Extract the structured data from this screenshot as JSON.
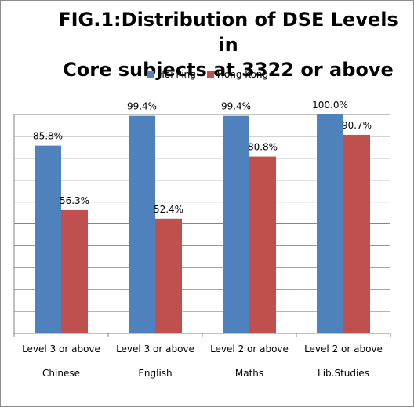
{
  "chart_data": {
    "type": "bar",
    "title": [
      "FIG.1:Distribution of DSE Levels in",
      "Core subjects at 3322 or above"
    ],
    "categories": [
      {
        "level": "Level 3 or above",
        "subject": "Chinese"
      },
      {
        "level": "Level 3 or above",
        "subject": "English"
      },
      {
        "level": "Level 2 or above",
        "subject": "Maths"
      },
      {
        "level": "Level 2 or above",
        "subject": "Lib.Studies"
      }
    ],
    "series": [
      {
        "name": "Hoi Ping",
        "color": "#4f81bd",
        "values": [
          85.8,
          99.4,
          99.4,
          100.0
        ],
        "labels": [
          "85.8%",
          "99.4%",
          "99.4%",
          "100.0%"
        ]
      },
      {
        "name": "Hong Kong",
        "color": "#c0504d",
        "values": [
          56.3,
          52.4,
          80.8,
          90.7
        ],
        "labels": [
          "56.3%",
          "52.4%",
          "80.8%",
          "90.7%"
        ]
      }
    ],
    "ylim": [
      0,
      100
    ],
    "grid": true,
    "legend_position": "top"
  }
}
